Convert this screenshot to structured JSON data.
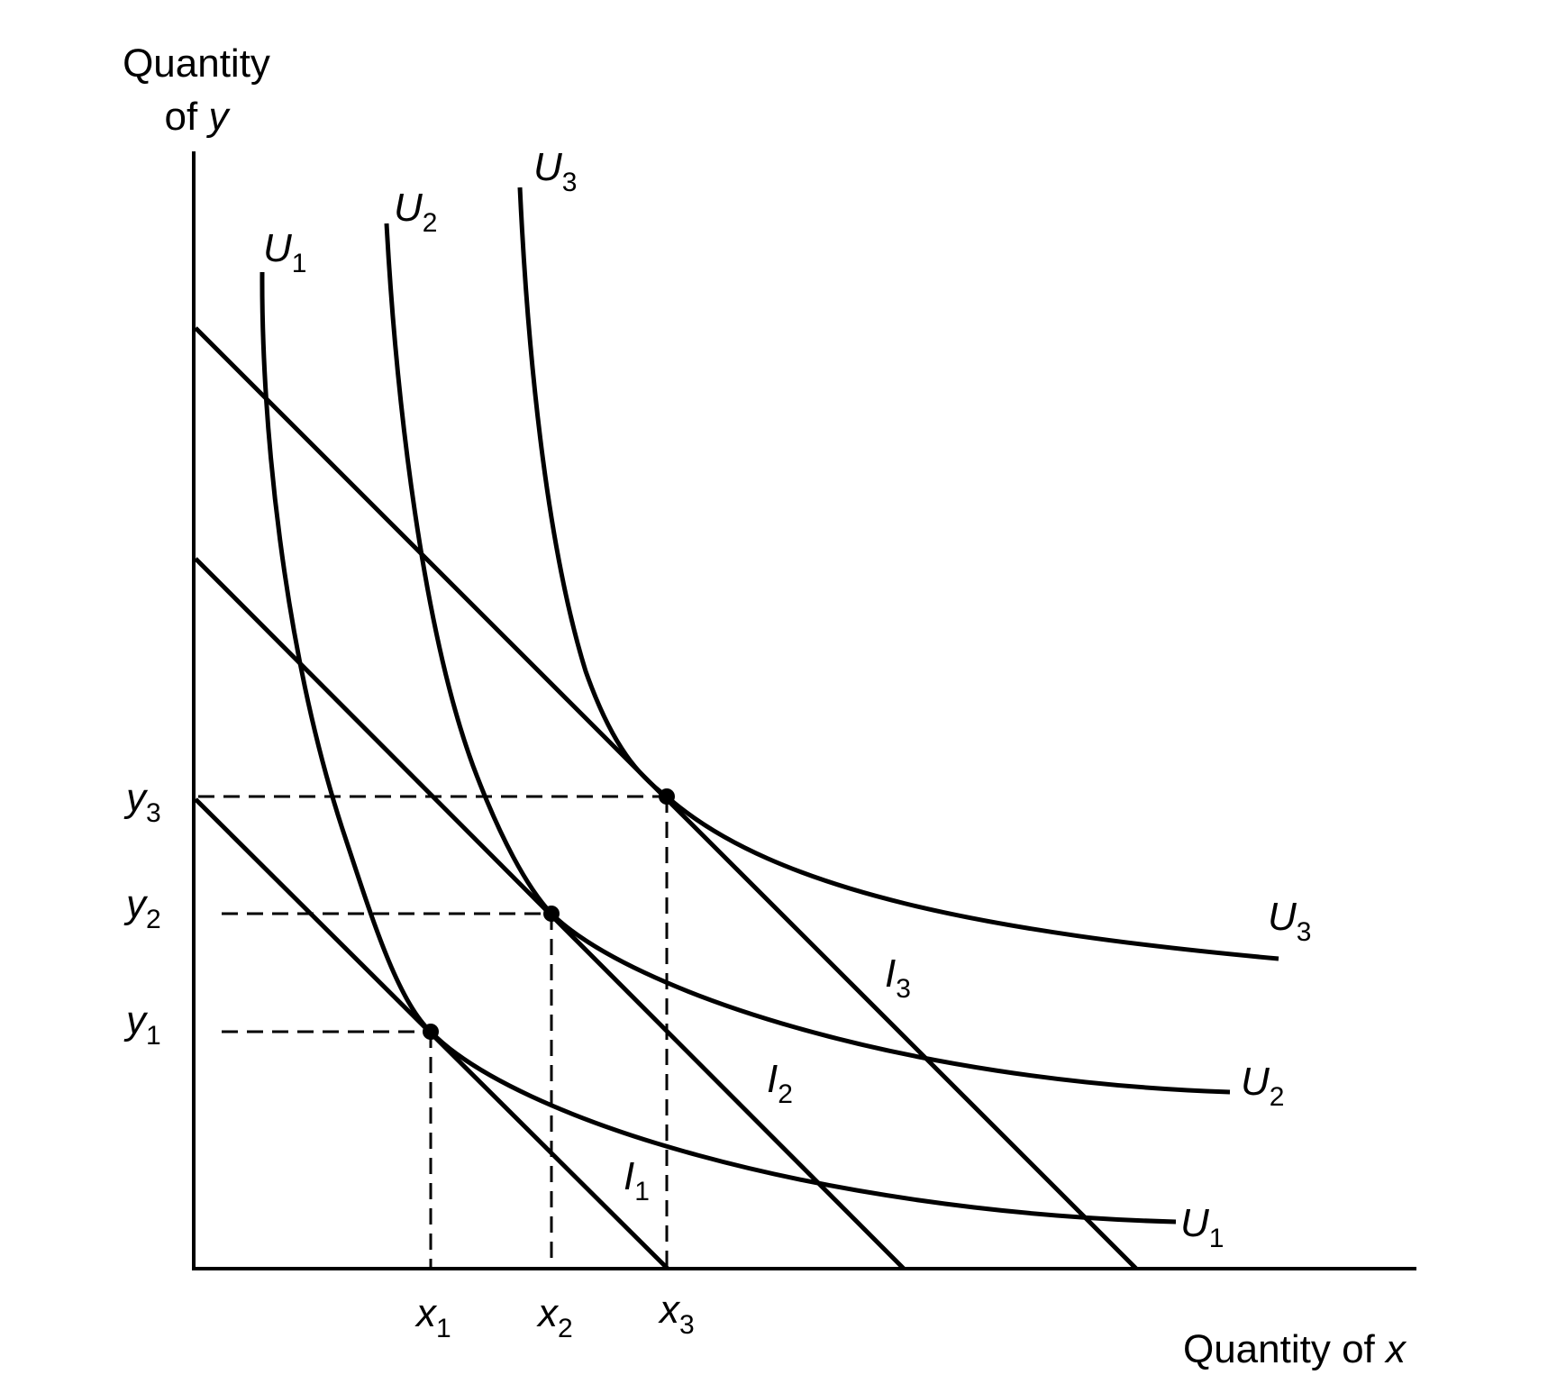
{
  "axes": {
    "y_label_line1": "Quantity",
    "y_label_line2_prefix": "of ",
    "y_label_var": "y",
    "x_label_prefix": "Quantity of ",
    "x_label_var": "x"
  },
  "curves": {
    "U1": {
      "letter": "U",
      "sub": "1"
    },
    "U2": {
      "letter": "U",
      "sub": "2"
    },
    "U3": {
      "letter": "U",
      "sub": "3"
    }
  },
  "budget_lines": {
    "I1": {
      "letter": "I",
      "sub": "1"
    },
    "I2": {
      "letter": "I",
      "sub": "2"
    },
    "I3": {
      "letter": "I",
      "sub": "3"
    }
  },
  "ticks": {
    "x1": {
      "letter": "x",
      "sub": "1"
    },
    "x2": {
      "letter": "x",
      "sub": "2"
    },
    "x3": {
      "letter": "x",
      "sub": "3"
    },
    "y1": {
      "letter": "y",
      "sub": "1"
    },
    "y2": {
      "letter": "y",
      "sub": "2"
    },
    "y3": {
      "letter": "y",
      "sub": "3"
    }
  }
}
